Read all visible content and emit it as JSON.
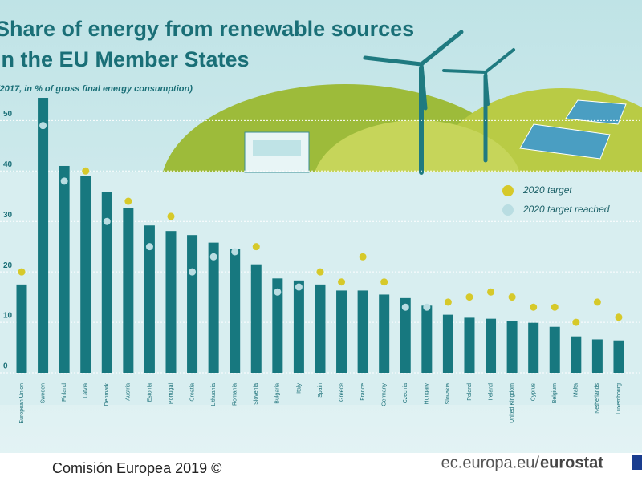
{
  "chart_data": {
    "type": "bar",
    "title": "Share of energy from renewable sources",
    "title_line2": "in the EU Member States",
    "subtitle": "(2017, in % of gross final energy consumption)",
    "categories": [
      "European Union",
      "Sweden",
      "Finland",
      "Latvia",
      "Denmark",
      "Austria",
      "Estonia",
      "Portugal",
      "Croatia",
      "Lithuania",
      "Romania",
      "Slovenia",
      "Bulgaria",
      "Italy",
      "Spain",
      "Greece",
      "France",
      "Germany",
      "Czechia",
      "Hungary",
      "Slovakia",
      "Poland",
      "Ireland",
      "United Kingdom",
      "Cyprus",
      "Belgium",
      "Malta",
      "Netherlands",
      "Luxembourg"
    ],
    "values": [
      17.5,
      54.5,
      41.0,
      39.0,
      35.8,
      32.6,
      29.2,
      28.1,
      27.3,
      25.8,
      24.5,
      21.5,
      18.7,
      18.3,
      17.5,
      16.3,
      16.3,
      15.5,
      14.8,
      13.3,
      11.5,
      10.9,
      10.7,
      10.2,
      9.9,
      9.1,
      7.2,
      6.6,
      6.4
    ],
    "color": "#17787f",
    "series": [
      {
        "name": "2020 target",
        "color": "#d6c92a",
        "values": [
          20,
          null,
          null,
          40,
          null,
          34,
          null,
          31,
          null,
          null,
          null,
          25,
          null,
          null,
          20,
          18,
          23,
          18,
          null,
          null,
          14,
          15,
          16,
          15,
          13,
          13,
          10,
          14,
          11
        ]
      },
      {
        "name": "2020 target reached",
        "color": "#b9dde2",
        "values": [
          null,
          49,
          38,
          null,
          30,
          null,
          25,
          null,
          20,
          23,
          24,
          null,
          16,
          17,
          null,
          null,
          null,
          null,
          13,
          13,
          null,
          null,
          null,
          null,
          null,
          null,
          null,
          null,
          null
        ]
      }
    ],
    "ylim": [
      0,
      58
    ],
    "yticks": [
      0,
      10,
      20,
      30,
      40,
      50
    ],
    "grid": true,
    "footer_left": "Comisión Europea 2019 ©",
    "footer_right": "ec.europa.eu/",
    "footer_brand": "eurostat"
  }
}
